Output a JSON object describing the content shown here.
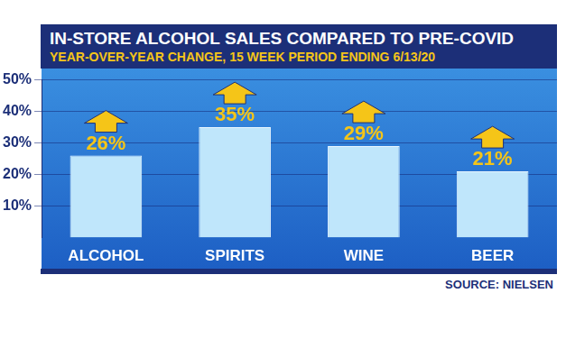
{
  "chart_data": {
    "type": "bar",
    "title": "IN-STORE ALCOHOL SALES COMPARED TO PRE-COVID",
    "subtitle": "YEAR-OVER-YEAR CHANGE, 15 WEEK PERIOD ENDING 6/13/20",
    "categories": [
      "ALCOHOL",
      "SPIRITS",
      "WINE",
      "BEER"
    ],
    "values": [
      26,
      35,
      29,
      21
    ],
    "value_labels": [
      "26%",
      "35%",
      "29%",
      "21%"
    ],
    "data_labels": true,
    "color": "#bfe6fb",
    "ylim": [
      0,
      50
    ],
    "yticks": [
      {
        "value": 10,
        "label": "10%"
      },
      {
        "value": 20,
        "label": "20%"
      },
      {
        "value": 30,
        "label": "30%"
      },
      {
        "value": 40,
        "label": "40%"
      },
      {
        "value": 50,
        "label": "50%"
      }
    ],
    "grid": true,
    "annotations": [
      "SOURCE: NIELSEN"
    ]
  }
}
